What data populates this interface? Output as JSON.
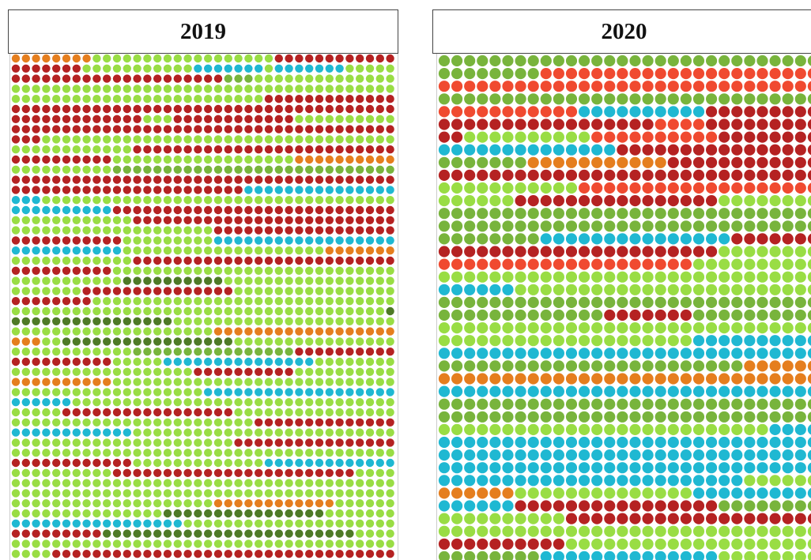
{
  "colors": {
    "light-green": "#99dd44",
    "olive-green": "#78b43c",
    "dark-green": "#4e7a26",
    "dark-red": "#b52222",
    "red-orange": "#f04a30",
    "orange": "#e57e1e",
    "cyan": "#1fb8d2"
  },
  "chart_data": [
    {
      "type": "dot-grid",
      "title": "2019",
      "columns": 38,
      "rows": 50,
      "row_runs": [
        [
          [
            "orange",
            8
          ],
          [
            "light-green",
            18
          ],
          [
            "dark-red",
            12
          ]
        ],
        [
          [
            "dark-red",
            7
          ],
          [
            "light-green",
            11
          ],
          [
            "cyan",
            7
          ],
          [
            "light-green",
            1
          ],
          [
            "cyan",
            7
          ],
          [
            "light-green",
            5
          ]
        ],
        [
          [
            "dark-red",
            21
          ],
          [
            "olive-green",
            3
          ],
          [
            "light-green",
            14
          ]
        ],
        [
          [
            "light-green",
            38
          ]
        ],
        [
          [
            "light-green",
            25
          ],
          [
            "dark-red",
            13
          ]
        ],
        [
          [
            "dark-red",
            38
          ]
        ],
        [
          [
            "dark-red",
            13
          ],
          [
            "light-green",
            3
          ],
          [
            "dark-red",
            12
          ],
          [
            "light-green",
            10
          ]
        ],
        [
          [
            "dark-red",
            38
          ]
        ],
        [
          [
            "dark-red",
            3
          ],
          [
            "light-green",
            35
          ]
        ],
        [
          [
            "light-green",
            12
          ],
          [
            "dark-red",
            26
          ]
        ],
        [
          [
            "dark-red",
            10
          ],
          [
            "light-green",
            18
          ],
          [
            "orange",
            10
          ]
        ],
        [
          [
            "light-green",
            10
          ],
          [
            "olive-green",
            28
          ]
        ],
        [
          [
            "dark-red",
            38
          ]
        ],
        [
          [
            "dark-red",
            23
          ],
          [
            "cyan",
            15
          ]
        ],
        [
          [
            "cyan",
            3
          ],
          [
            "light-green",
            35
          ]
        ],
        [
          [
            "cyan",
            10
          ],
          [
            "dark-red",
            28
          ]
        ],
        [
          [
            "light-green",
            12
          ],
          [
            "dark-red",
            26
          ]
        ],
        [
          [
            "light-green",
            20
          ],
          [
            "dark-red",
            18
          ]
        ],
        [
          [
            "dark-red",
            11
          ],
          [
            "light-green",
            9
          ],
          [
            "cyan",
            18
          ]
        ],
        [
          [
            "cyan",
            11
          ],
          [
            "light-green",
            20
          ],
          [
            "orange",
            7
          ]
        ],
        [
          [
            "light-green",
            12
          ],
          [
            "dark-red",
            26
          ]
        ],
        [
          [
            "dark-red",
            10
          ],
          [
            "light-green",
            28
          ]
        ],
        [
          [
            "light-green",
            11
          ],
          [
            "dark-green",
            10
          ],
          [
            "light-green",
            17
          ]
        ],
        [
          [
            "light-green",
            7
          ],
          [
            "dark-red",
            15
          ],
          [
            "light-green",
            16
          ]
        ],
        [
          [
            "dark-red",
            8
          ],
          [
            "light-green",
            30
          ]
        ],
        [
          [
            "light-green",
            37
          ],
          [
            "dark-green",
            1
          ]
        ],
        [
          [
            "dark-green",
            16
          ],
          [
            "light-green",
            22
          ]
        ],
        [
          [
            "light-green",
            20
          ],
          [
            "orange",
            18
          ]
        ],
        [
          [
            "orange",
            3
          ],
          [
            "light-green",
            2
          ],
          [
            "dark-green",
            17
          ],
          [
            "light-green",
            16
          ]
        ],
        [
          [
            "light-green",
            12
          ],
          [
            "olive-green",
            16
          ],
          [
            "dark-red",
            10
          ]
        ],
        [
          [
            "dark-red",
            10
          ],
          [
            "light-green",
            5
          ],
          [
            "cyan",
            15
          ],
          [
            "light-green",
            8
          ]
        ],
        [
          [
            "light-green",
            18
          ],
          [
            "dark-red",
            10
          ],
          [
            "light-green",
            10
          ]
        ],
        [
          [
            "orange",
            10
          ],
          [
            "light-green",
            28
          ]
        ],
        [
          [
            "light-green",
            19
          ],
          [
            "cyan",
            19
          ]
        ],
        [
          [
            "cyan",
            6
          ],
          [
            "light-green",
            32
          ]
        ],
        [
          [
            "light-green",
            5
          ],
          [
            "dark-red",
            17
          ],
          [
            "light-green",
            16
          ]
        ],
        [
          [
            "light-green",
            24
          ],
          [
            "dark-red",
            14
          ]
        ],
        [
          [
            "cyan",
            12
          ],
          [
            "light-green",
            26
          ]
        ],
        [
          [
            "light-green",
            22
          ],
          [
            "dark-red",
            16
          ]
        ],
        [
          [
            "light-green",
            38
          ]
        ],
        [
          [
            "dark-red",
            12
          ],
          [
            "light-green",
            13
          ],
          [
            "cyan",
            13
          ]
        ],
        [
          [
            "light-green",
            10
          ],
          [
            "dark-red",
            24
          ],
          [
            "light-green",
            4
          ]
        ],
        [
          [
            "light-green",
            38
          ]
        ],
        [
          [
            "light-green",
            38
          ]
        ],
        [
          [
            "light-green",
            20
          ],
          [
            "orange",
            12
          ],
          [
            "light-green",
            6
          ]
        ],
        [
          [
            "light-green",
            15
          ],
          [
            "dark-green",
            16
          ],
          [
            "light-green",
            7
          ]
        ],
        [
          [
            "cyan",
            17
          ],
          [
            "light-green",
            21
          ]
        ],
        [
          [
            "dark-red",
            9
          ],
          [
            "dark-green",
            25
          ],
          [
            "light-green",
            4
          ]
        ],
        [
          [
            "light-green",
            38
          ]
        ],
        [
          [
            "light-green",
            4
          ],
          [
            "dark-red",
            34
          ]
        ]
      ]
    },
    {
      "type": "dot-grid",
      "title": "2020",
      "columns": 30,
      "rows": 40,
      "row_runs": [
        [
          [
            "olive-green",
            30
          ]
        ],
        [
          [
            "olive-green",
            8
          ],
          [
            "red-orange",
            22
          ]
        ],
        [
          [
            "red-orange",
            30
          ]
        ],
        [
          [
            "olive-green",
            30
          ]
        ],
        [
          [
            "red-orange",
            11
          ],
          [
            "cyan",
            10
          ],
          [
            "dark-red",
            9
          ]
        ],
        [
          [
            "dark-red",
            17
          ],
          [
            "red-orange",
            4
          ],
          [
            "dark-red",
            9
          ]
        ],
        [
          [
            "dark-red",
            2
          ],
          [
            "light-green",
            10
          ],
          [
            "red-orange",
            10
          ],
          [
            "dark-red",
            8
          ]
        ],
        [
          [
            "cyan",
            14
          ],
          [
            "dark-red",
            16
          ]
        ],
        [
          [
            "olive-green",
            7
          ],
          [
            "orange",
            11
          ],
          [
            "dark-red",
            12
          ]
        ],
        [
          [
            "dark-red",
            30
          ]
        ],
        [
          [
            "light-green",
            11
          ],
          [
            "red-orange",
            19
          ]
        ],
        [
          [
            "light-green",
            6
          ],
          [
            "dark-red",
            16
          ],
          [
            "light-green",
            8
          ]
        ],
        [
          [
            "olive-green",
            30
          ]
        ],
        [
          [
            "olive-green",
            30
          ]
        ],
        [
          [
            "olive-green",
            8
          ],
          [
            "cyan",
            15
          ],
          [
            "dark-red",
            7
          ]
        ],
        [
          [
            "dark-red",
            22
          ],
          [
            "light-green",
            8
          ]
        ],
        [
          [
            "red-orange",
            20
          ],
          [
            "light-green",
            10
          ]
        ],
        [
          [
            "light-green",
            30
          ]
        ],
        [
          [
            "cyan",
            6
          ],
          [
            "light-green",
            24
          ]
        ],
        [
          [
            "olive-green",
            30
          ]
        ],
        [
          [
            "olive-green",
            13
          ],
          [
            "dark-red",
            7
          ],
          [
            "olive-green",
            10
          ]
        ],
        [
          [
            "light-green",
            30
          ]
        ],
        [
          [
            "light-green",
            20
          ],
          [
            "cyan",
            10
          ]
        ],
        [
          [
            "cyan",
            30
          ]
        ],
        [
          [
            "olive-green",
            24
          ],
          [
            "orange",
            6
          ]
        ],
        [
          [
            "orange",
            30
          ]
        ],
        [
          [
            "cyan",
            30
          ]
        ],
        [
          [
            "olive-green",
            30
          ]
        ],
        [
          [
            "olive-green",
            30
          ]
        ],
        [
          [
            "light-green",
            26
          ],
          [
            "cyan",
            4
          ]
        ],
        [
          [
            "cyan",
            30
          ]
        ],
        [
          [
            "cyan",
            30
          ]
        ],
        [
          [
            "cyan",
            30
          ]
        ],
        [
          [
            "cyan",
            24
          ],
          [
            "light-green",
            6
          ]
        ],
        [
          [
            "orange",
            6
          ],
          [
            "light-green",
            14
          ],
          [
            "cyan",
            10
          ]
        ],
        [
          [
            "cyan",
            6
          ],
          [
            "dark-red",
            16
          ],
          [
            "olive-green",
            8
          ]
        ],
        [
          [
            "light-green",
            10
          ],
          [
            "dark-red",
            20
          ]
        ],
        [
          [
            "light-green",
            30
          ]
        ],
        [
          [
            "dark-red",
            10
          ],
          [
            "light-green",
            20
          ]
        ],
        [
          [
            "olive-green",
            8
          ],
          [
            "cyan",
            14
          ],
          [
            "light-green",
            8
          ]
        ]
      ]
    }
  ]
}
